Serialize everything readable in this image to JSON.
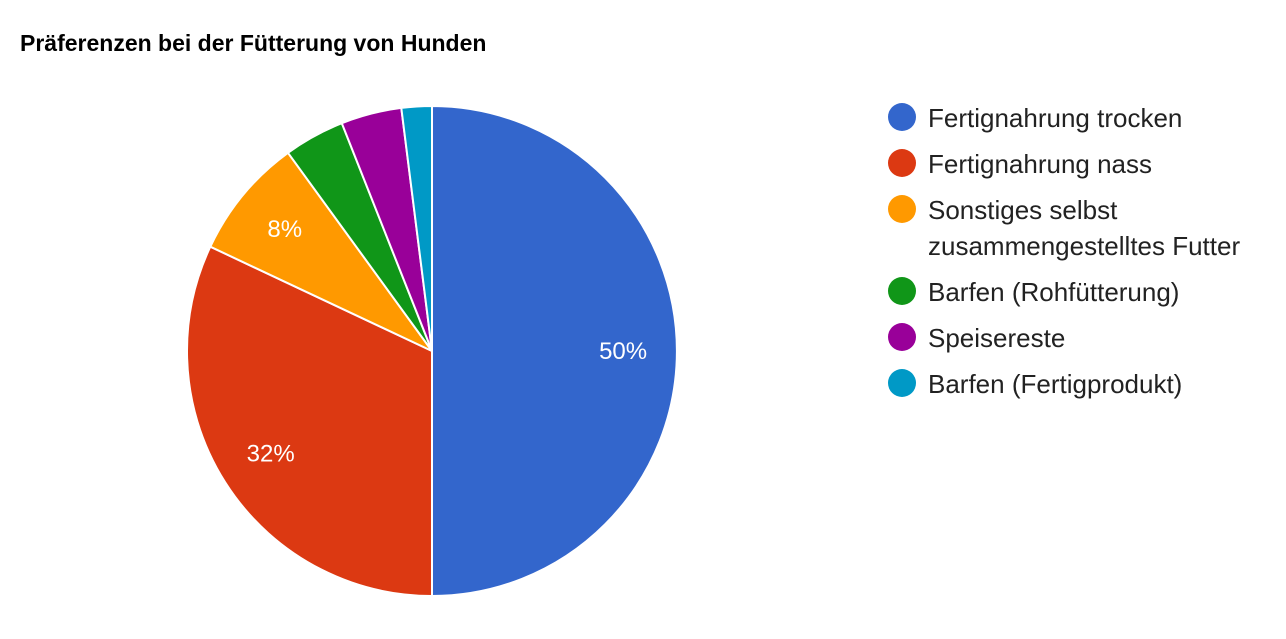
{
  "chart_data": {
    "type": "pie",
    "title": "Präferenzen bei der Fütterung von Hunden",
    "categories": [
      "Fertignahrung trocken",
      "Fertignahrung nass",
      "Sonstiges selbst zusammengestelltes Futter",
      "Barfen (Rohfütterung)",
      "Speisereste",
      "Barfen (Fertigprodukt)"
    ],
    "values": [
      50,
      32,
      8,
      4,
      4,
      2
    ],
    "colors": [
      "#3366cc",
      "#dc3912",
      "#ff9900",
      "#109618",
      "#990099",
      "#0099c6"
    ],
    "data_labels": [
      "50%",
      "32%",
      "8%",
      "",
      "",
      ""
    ],
    "legend_position": "right"
  },
  "legend": [
    {
      "label": "Fertignahrung trocken",
      "color": "#3366cc"
    },
    {
      "label": "Fertignahrung nass",
      "color": "#dc3912"
    },
    {
      "label": "Sonstiges selbst zusammengestelltes Futter",
      "color": "#ff9900"
    },
    {
      "label": "Barfen (Rohfütterung)",
      "color": "#109618"
    },
    {
      "label": "Speisereste",
      "color": "#990099"
    },
    {
      "label": "Barfen (Fertigprodukt)",
      "color": "#0099c6"
    }
  ]
}
